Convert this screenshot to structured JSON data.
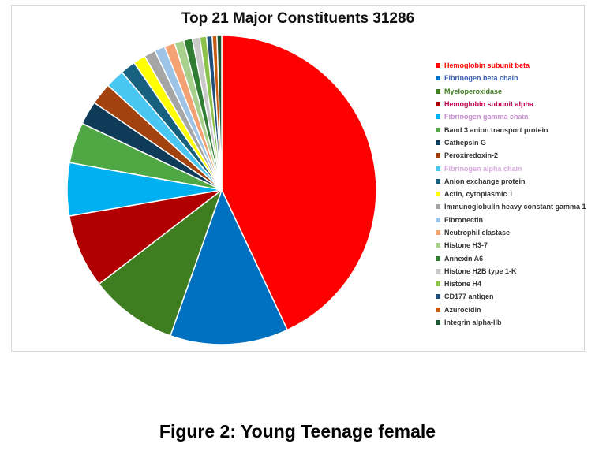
{
  "figure": {
    "caption": "Figure 2: Young Teenage female"
  },
  "chart_data": {
    "type": "pie",
    "title": "Top 21 Major Constituents 31286",
    "legend_position": "right",
    "start_angle_deg": 0,
    "direction": "clockwise",
    "slices": [
      {
        "label": "Hemoglobin subunit beta",
        "value": 43.5,
        "color": "#ff0000",
        "label_color": "#ff0000"
      },
      {
        "label": "Fibrinogen beta chain",
        "value": 12.5,
        "color": "#0070c0",
        "label_color": "#3a5fb0"
      },
      {
        "label": "Myeloperoxidase",
        "value": 9.3,
        "color": "#3f7d21",
        "label_color": "#3f7d21"
      },
      {
        "label": "Hemoglobin subunit alpha",
        "value": 7.8,
        "color": "#b00000",
        "label_color": "#c0004e"
      },
      {
        "label": "Fibrinogen gamma chain",
        "value": 5.6,
        "color": "#00b0f0",
        "label_color": "#c78bd1"
      },
      {
        "label": "Band 3 anion transport protein",
        "value": 4.3,
        "color": "#4fa843",
        "label_color": "#333333"
      },
      {
        "label": "Cathepsin G",
        "value": 2.5,
        "color": "#0e3b58",
        "label_color": "#333333"
      },
      {
        "label": "Peroxiredoxin-2",
        "value": 2.3,
        "color": "#a2420f",
        "label_color": "#333333"
      },
      {
        "label": "Fibrinogen alpha chain",
        "value": 2.0,
        "color": "#4ac6f2",
        "label_color": "#d9a8e0"
      },
      {
        "label": "Anion exchange protein",
        "value": 1.6,
        "color": "#17607e",
        "label_color": "#333333"
      },
      {
        "label": "Actin, cytoplasmic 1",
        "value": 1.3,
        "color": "#ffff00",
        "label_color": "#333333"
      },
      {
        "label": "Immunoglobulin heavy constant gamma 1",
        "value": 1.2,
        "color": "#a6a6a6",
        "label_color": "#333333"
      },
      {
        "label": "Fibronectin",
        "value": 1.1,
        "color": "#9dc3e6",
        "label_color": "#333333"
      },
      {
        "label": "Neutrophil elastase",
        "value": 1.1,
        "color": "#f4a173",
        "label_color": "#333333"
      },
      {
        "label": "Histone H3-7",
        "value": 1.0,
        "color": "#a9d18e",
        "label_color": "#333333"
      },
      {
        "label": "Annexin A6",
        "value": 0.9,
        "color": "#2e7d32",
        "label_color": "#333333"
      },
      {
        "label": "Histone H2B type 1-K",
        "value": 0.8,
        "color": "#c9c9c9",
        "label_color": "#333333"
      },
      {
        "label": "Histone H4",
        "value": 0.7,
        "color": "#8bc34a",
        "label_color": "#333333"
      },
      {
        "label": "CD177 antigen",
        "value": 0.6,
        "color": "#1f4e79",
        "label_color": "#333333"
      },
      {
        "label": "Azurocidin",
        "value": 0.5,
        "color": "#c55a11",
        "label_color": "#333333"
      },
      {
        "label": "Integrin alpha-IIb",
        "value": 0.5,
        "color": "#1e5631",
        "label_color": "#333333"
      }
    ]
  }
}
